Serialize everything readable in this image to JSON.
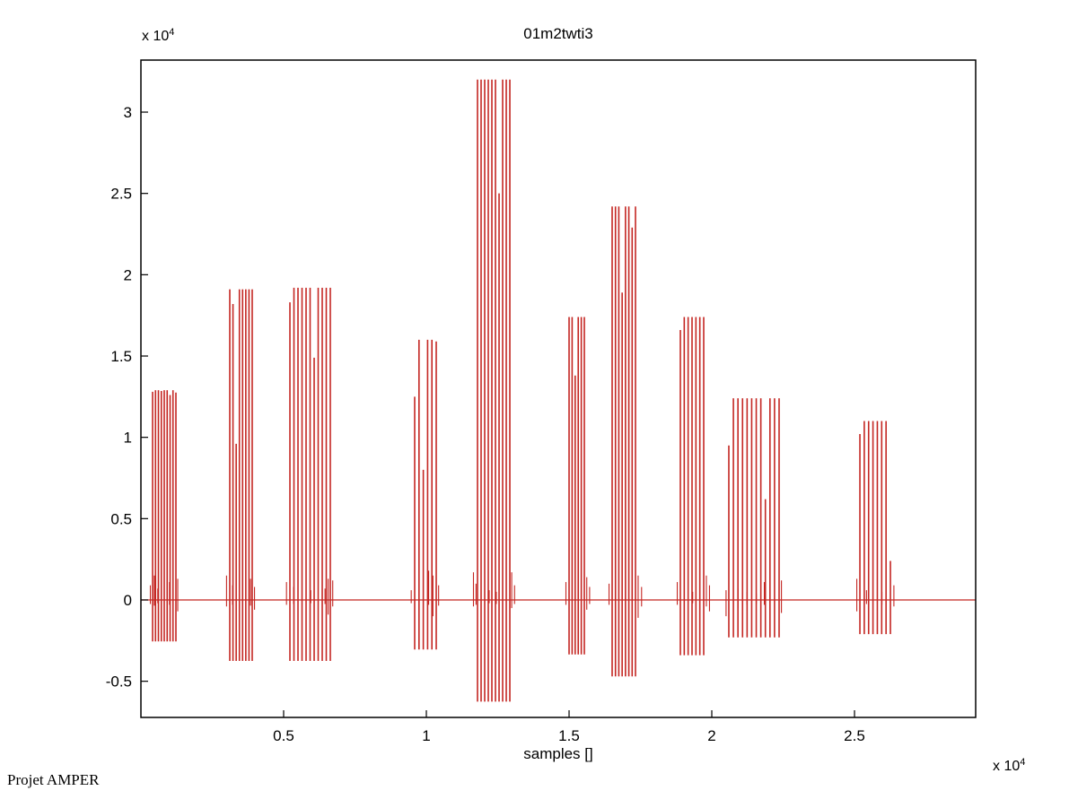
{
  "window": {
    "background": "#ffffff"
  },
  "credit": "Projet AMPER",
  "chart": {
    "title": "01m2twti3",
    "xlabel": "samples []",
    "y_exponent": {
      "prefix": "x 10",
      "exp": "4"
    },
    "x_exponent": {
      "prefix": "x 10",
      "exp": "4"
    }
  },
  "chart_data": {
    "type": "line",
    "title": "01m2twti3",
    "xlabel": "samples []",
    "ylabel": "",
    "x_units_exponent": 4,
    "y_units_exponent": 4,
    "xlim": [
      0,
      29245
    ],
    "ylim": [
      -7225,
      33200
    ],
    "grid": false,
    "legend": null,
    "line_color": "#c42622",
    "axis_color": "#000000",
    "baseline": 0,
    "xticks": [
      {
        "value": 5000,
        "label": "0.5"
      },
      {
        "value": 10000,
        "label": "1"
      },
      {
        "value": 15000,
        "label": "1.5"
      },
      {
        "value": 20000,
        "label": "2"
      },
      {
        "value": 25000,
        "label": "2.5"
      }
    ],
    "yticks": [
      {
        "value": -5000,
        "label": "-0.5"
      },
      {
        "value": 0,
        "label": "0"
      },
      {
        "value": 5000,
        "label": "0.5"
      },
      {
        "value": 10000,
        "label": "1"
      },
      {
        "value": 15000,
        "label": "1.5"
      },
      {
        "value": 20000,
        "label": "2"
      },
      {
        "value": 25000,
        "label": "2.5"
      },
      {
        "value": 30000,
        "label": "3"
      }
    ],
    "bursts": [
      {
        "x_start": 409,
        "x_end": 1226,
        "bottom": -2550,
        "tops": [
          12800,
          12900,
          12900,
          12850,
          12900,
          12900,
          12600,
          12900,
          12750
        ],
        "spikes": [
          {
            "x": 330,
            "top": 900,
            "bottom": -250
          },
          {
            "x": 470,
            "top": 1500,
            "bottom": -350
          },
          {
            "x": 590,
            "top": 700,
            "bottom": -200
          },
          {
            "x": 1000,
            "top": 1100,
            "bottom": -300
          },
          {
            "x": 1130,
            "top": 1400,
            "bottom": -450
          },
          {
            "x": 1290,
            "top": 1300,
            "bottom": -700
          }
        ]
      },
      {
        "x_start": 3113,
        "x_end": 3899,
        "bottom": -3750,
        "tops": [
          19100,
          18200,
          9600,
          19100,
          19100,
          19100,
          19100,
          19100
        ],
        "spikes": [
          {
            "x": 3000,
            "top": 1500,
            "bottom": -400
          },
          {
            "x": 3210,
            "top": 900,
            "bottom": -300
          },
          {
            "x": 3840,
            "top": 1300,
            "bottom": -350
          },
          {
            "x": 3980,
            "top": 800,
            "bottom": -600
          }
        ]
      },
      {
        "x_start": 5220,
        "x_end": 6635,
        "bottom": -3750,
        "tops": [
          18300,
          19200,
          19200,
          19200,
          19200,
          19200,
          14900,
          19200,
          19200,
          19200,
          19200
        ],
        "spikes": [
          {
            "x": 5100,
            "top": 1100,
            "bottom": -300
          },
          {
            "x": 5350,
            "top": 800,
            "bottom": -250
          },
          {
            "x": 5950,
            "top": 600,
            "bottom": -200
          },
          {
            "x": 6450,
            "top": 700,
            "bottom": -250
          },
          {
            "x": 6560,
            "top": 1300,
            "bottom": -900
          },
          {
            "x": 6720,
            "top": 1200,
            "bottom": -400
          }
        ]
      },
      {
        "x_start": 9591,
        "x_end": 10346,
        "bottom": -3050,
        "tops": [
          12500,
          16000,
          8000,
          16000,
          16000,
          15900
        ],
        "spikes": [
          {
            "x": 9470,
            "top": 600,
            "bottom": -200
          },
          {
            "x": 10080,
            "top": 1800,
            "bottom": -300
          },
          {
            "x": 10230,
            "top": 1500,
            "bottom": -1000
          },
          {
            "x": 10430,
            "top": 900,
            "bottom": -350
          }
        ]
      },
      {
        "x_start": 11792,
        "x_end": 12925,
        "bottom": -6250,
        "tops": [
          32000,
          32000,
          32000,
          32000,
          32000,
          32000,
          25000,
          32000,
          32000,
          32000
        ],
        "spikes": [
          {
            "x": 11650,
            "top": 1700,
            "bottom": -400
          },
          {
            "x": 11740,
            "top": 1000,
            "bottom": -300
          },
          {
            "x": 12200,
            "top": 600,
            "bottom": -200
          },
          {
            "x": 12450,
            "top": 500,
            "bottom": -250
          },
          {
            "x": 12990,
            "top": 1700,
            "bottom": -500
          },
          {
            "x": 13090,
            "top": 900,
            "bottom": -250
          }
        ]
      },
      {
        "x_start": 15000,
        "x_end": 15535,
        "bottom": -3350,
        "tops": [
          17400,
          17400,
          13800,
          17400,
          17400,
          17400
        ],
        "spikes": [
          {
            "x": 14890,
            "top": 1100,
            "bottom": -300
          },
          {
            "x": 15620,
            "top": 1400,
            "bottom": -600
          },
          {
            "x": 15720,
            "top": 800,
            "bottom": -250
          }
        ]
      },
      {
        "x_start": 16509,
        "x_end": 17327,
        "bottom": -4700,
        "tops": [
          24200,
          24200,
          24200,
          18900,
          24200,
          24200,
          22900,
          24200
        ],
        "spikes": [
          {
            "x": 16400,
            "top": 1000,
            "bottom": -300
          },
          {
            "x": 17420,
            "top": 1500,
            "bottom": -1100
          },
          {
            "x": 17540,
            "top": 800,
            "bottom": -400
          }
        ]
      },
      {
        "x_start": 18899,
        "x_end": 19717,
        "bottom": -3400,
        "tops": [
          16600,
          17400,
          17400,
          17400,
          17400,
          17400,
          17400
        ],
        "spikes": [
          {
            "x": 18790,
            "top": 1100,
            "bottom": -300
          },
          {
            "x": 19330,
            "top": 500,
            "bottom": -200
          },
          {
            "x": 19810,
            "top": 1500,
            "bottom": -400
          },
          {
            "x": 19920,
            "top": 900,
            "bottom": -700
          }
        ]
      },
      {
        "x_start": 20597,
        "x_end": 22358,
        "bottom": -2300,
        "tops": [
          9500,
          12400,
          12400,
          12400,
          12400,
          12400,
          12400,
          12400,
          6200,
          12400,
          12400,
          12400
        ],
        "spikes": [
          {
            "x": 20500,
            "top": 600,
            "bottom": -1000
          },
          {
            "x": 20920,
            "top": 700,
            "bottom": -500
          },
          {
            "x": 21230,
            "top": 500,
            "bottom": -300
          },
          {
            "x": 21560,
            "top": 400,
            "bottom": -250
          },
          {
            "x": 21840,
            "top": 1100,
            "bottom": -300
          },
          {
            "x": 22440,
            "top": 1200,
            "bottom": -800
          }
        ]
      },
      {
        "x_start": 25189,
        "x_end": 26258,
        "bottom": -2100,
        "tops": [
          10200,
          11000,
          11000,
          11000,
          11000,
          11000,
          11000,
          2400
        ],
        "spikes": [
          {
            "x": 25080,
            "top": 1300,
            "bottom": -700
          },
          {
            "x": 25420,
            "top": 600,
            "bottom": -250
          },
          {
            "x": 25960,
            "top": 500,
            "bottom": -300
          },
          {
            "x": 26380,
            "top": 900,
            "bottom": -400
          }
        ]
      }
    ]
  }
}
